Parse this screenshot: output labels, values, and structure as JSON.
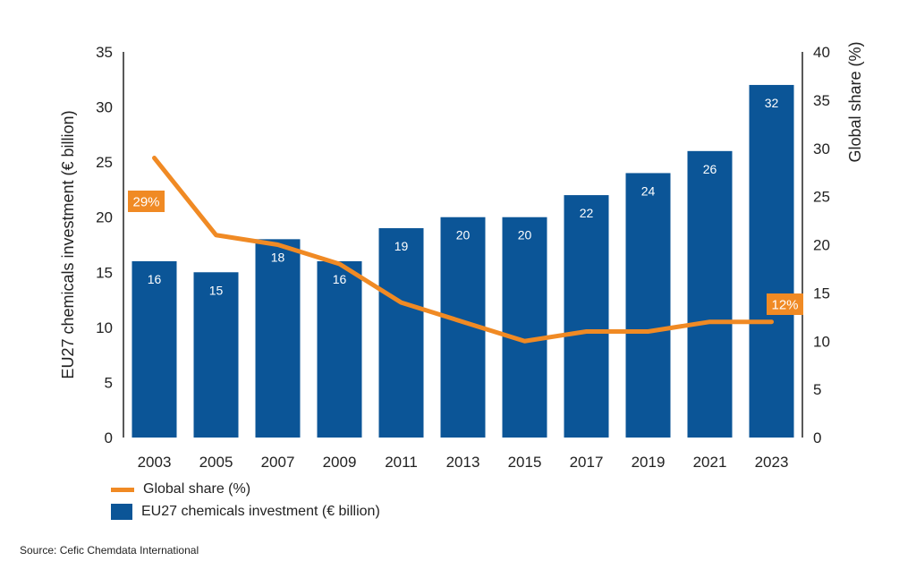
{
  "chart_data": {
    "type": "bar+line",
    "categories": [
      "2003",
      "2005",
      "2007",
      "2009",
      "2011",
      "2013",
      "2015",
      "2017",
      "2019",
      "2021",
      "2023"
    ],
    "series": [
      {
        "name": "EU27 chemicals investment (€ billion)",
        "type": "bar",
        "axis": "left",
        "color": "#0b5597",
        "values": [
          16,
          15,
          18,
          16,
          19,
          20,
          20,
          22,
          24,
          26,
          32
        ]
      },
      {
        "name": "Global share (%)",
        "type": "line",
        "axis": "right",
        "color": "#f08a24",
        "values": [
          29,
          21,
          20,
          18,
          14,
          12,
          10,
          11,
          11,
          12,
          12
        ]
      }
    ],
    "ylabel": "EU27 chemicals investment (€ billion)",
    "ylabel_right": "Global share (%)",
    "ylim": [
      0,
      35
    ],
    "yticks": [
      0,
      5,
      10,
      15,
      20,
      25,
      30,
      35
    ],
    "ylim_right": [
      0,
      40
    ],
    "yticks_right": [
      0,
      5,
      10,
      15,
      20,
      25,
      30,
      35,
      40
    ],
    "annotations": [
      {
        "category": "2003",
        "text": "29%"
      },
      {
        "category": "2023",
        "text": "12%"
      }
    ],
    "legend_position": "bottom-left",
    "grid": false
  },
  "legend": {
    "line": "Global share (%)",
    "bar": "EU27 chemicals investment (€ billion)"
  },
  "source": "Source: Cefic Chemdata International"
}
